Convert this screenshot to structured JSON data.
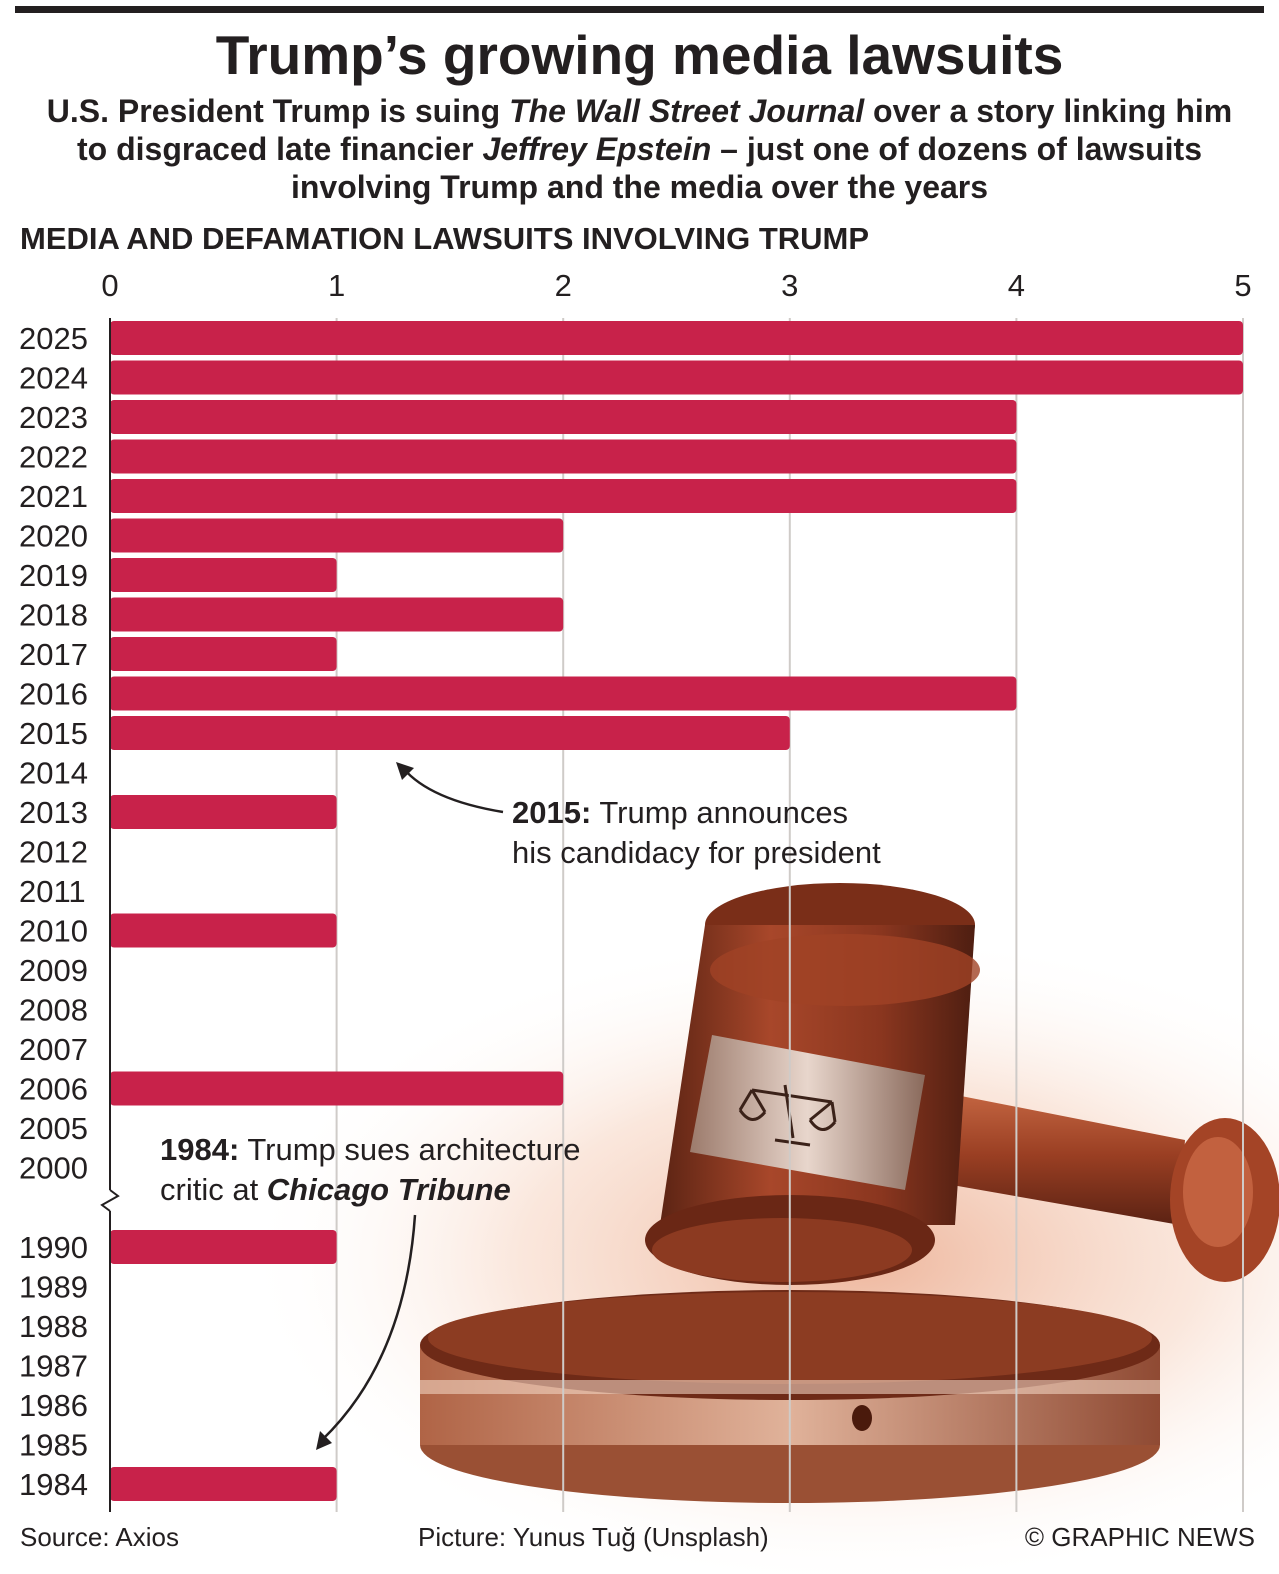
{
  "title": "Trump’s growing media lawsuits",
  "subtitle": {
    "p1": "U.S. President Trump is suing ",
    "p2": "The Wall Street Journal",
    "p3": " over a story linking him to disgraced late financier ",
    "p4": "Jeffrey Epstein",
    "p5": " – just one of dozens of lawsuits involving Trump and the media over the years"
  },
  "chart_heading": "MEDIA AND DEFAMATION LAWSUITS INVOLVING TRUMP",
  "chart_data": {
    "type": "bar",
    "orientation": "horizontal",
    "title": "MEDIA AND DEFAMATION LAWSUITS INVOLVING TRUMP",
    "xlim": [
      0,
      5
    ],
    "x_ticks": [
      "0",
      "1",
      "2",
      "3",
      "4",
      "5"
    ],
    "x_axis_position": "top",
    "grid": true,
    "bar_color": "#c8224a",
    "axis_break_after": "2000",
    "categories": [
      "2025",
      "2024",
      "2023",
      "2022",
      "2021",
      "2020",
      "2019",
      "2018",
      "2017",
      "2016",
      "2015",
      "2014",
      "2013",
      "2012",
      "2011",
      "2010",
      "2009",
      "2008",
      "2007",
      "2006",
      "2005",
      "2000",
      "1990",
      "1989",
      "1988",
      "1987",
      "1986",
      "1985",
      "1984"
    ],
    "values": [
      5,
      5,
      4,
      4,
      4,
      2,
      1,
      2,
      1,
      4,
      3,
      0,
      1,
      0,
      0,
      1,
      0,
      0,
      0,
      2,
      0,
      0,
      1,
      0,
      0,
      0,
      0,
      0,
      1
    ],
    "annotations": [
      {
        "target": "2015",
        "bold": "2015:",
        "line1": " Trump announces",
        "line2": "his candidacy for president"
      },
      {
        "target": "1984",
        "bold": "1984:",
        "line1": " Trump sues architecture",
        "line2_prefix": "critic at ",
        "line2_italic": "Chicago Tribune"
      }
    ]
  },
  "footer": {
    "source": "Source: Axios",
    "credit": "Picture: Yunus Tuğ (Unsplash)",
    "copyright": "© GRAPHIC NEWS"
  },
  "colors": {
    "bar": "#c8224a",
    "text": "#231f20",
    "gavel": "#8e3b22"
  }
}
